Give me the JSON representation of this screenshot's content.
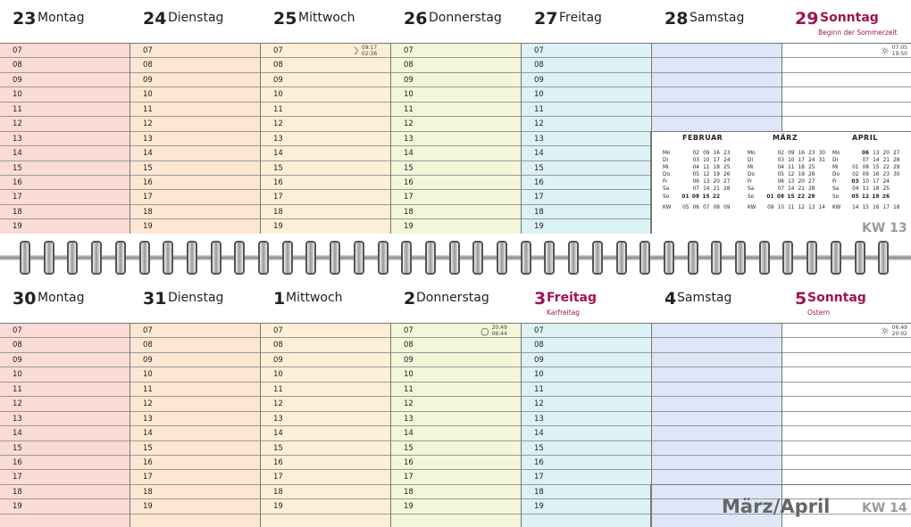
{
  "hours": [
    "07",
    "08",
    "09",
    "10",
    "11",
    "12",
    "13",
    "14",
    "15",
    "16",
    "17",
    "18",
    "19"
  ],
  "week_top": {
    "kw": "KW 13",
    "days": [
      {
        "num": "23",
        "name": "Montag"
      },
      {
        "num": "24",
        "name": "Dienstag"
      },
      {
        "num": "25",
        "name": "Mittwoch",
        "moon": {
          "rise": "09:17",
          "set": "02:36"
        }
      },
      {
        "num": "26",
        "name": "Donnerstag"
      },
      {
        "num": "27",
        "name": "Freitag"
      },
      {
        "num": "28",
        "name": "Samstag"
      },
      {
        "num": "29",
        "name": "Sonntag",
        "note": "Beginn der Sommerzeit",
        "sun": {
          "rise": "07:05",
          "set": "19:50"
        }
      }
    ]
  },
  "week_bottom": {
    "kw": "KW 14",
    "month_title": "März/April",
    "days": [
      {
        "num": "30",
        "name": "Montag"
      },
      {
        "num": "31",
        "name": "Dienstag"
      },
      {
        "num": "1",
        "name": "Mittwoch"
      },
      {
        "num": "2",
        "name": "Donnerstag",
        "moon": {
          "rise": "20:49",
          "set": "06:44"
        }
      },
      {
        "num": "3",
        "name": "Freitag",
        "note": "Karfreitag"
      },
      {
        "num": "4",
        "name": "Samstag"
      },
      {
        "num": "5",
        "name": "Sonntag",
        "note": "Ostern",
        "sun": {
          "rise": "06:49",
          "set": "20:02"
        }
      }
    ]
  },
  "mini_calendars": [
    {
      "title": "FEBRUAR",
      "rows": [
        {
          "label": "Mo",
          "cells": [
            "",
            "02",
            "09",
            "16",
            "23"
          ]
        },
        {
          "label": "Di",
          "cells": [
            "",
            "03",
            "10",
            "17",
            "24"
          ]
        },
        {
          "label": "Mi",
          "cells": [
            "",
            "04",
            "11",
            "18",
            "25"
          ]
        },
        {
          "label": "Do",
          "cells": [
            "",
            "05",
            "12",
            "19",
            "26"
          ]
        },
        {
          "label": "Fr",
          "cells": [
            "",
            "06",
            "13",
            "20",
            "27"
          ]
        },
        {
          "label": "Sa",
          "cells": [
            "",
            "07",
            "14",
            "21",
            "28"
          ]
        },
        {
          "label": "So",
          "cells": [
            "01",
            "08",
            "15",
            "22",
            ""
          ],
          "bold": true
        }
      ],
      "kw": {
        "label": "KW",
        "cells": [
          "05",
          "06",
          "07",
          "08",
          "09"
        ]
      }
    },
    {
      "title": "MÄRZ",
      "rows": [
        {
          "label": "Mo",
          "cells": [
            "",
            "02",
            "09",
            "16",
            "23",
            "30"
          ]
        },
        {
          "label": "Di",
          "cells": [
            "",
            "03",
            "10",
            "17",
            "24",
            "31"
          ]
        },
        {
          "label": "Mi",
          "cells": [
            "",
            "04",
            "11",
            "18",
            "25",
            ""
          ]
        },
        {
          "label": "Do",
          "cells": [
            "",
            "05",
            "12",
            "19",
            "26",
            ""
          ]
        },
        {
          "label": "Fr",
          "cells": [
            "",
            "06",
            "13",
            "20",
            "27",
            ""
          ]
        },
        {
          "label": "Sa",
          "cells": [
            "",
            "07",
            "14",
            "21",
            "28",
            ""
          ]
        },
        {
          "label": "So",
          "cells": [
            "01",
            "08",
            "15",
            "22",
            "29",
            ""
          ],
          "bold": true
        }
      ],
      "kw": {
        "label": "KW",
        "cells": [
          "09",
          "10",
          "11",
          "12",
          "13",
          "14"
        ]
      }
    },
    {
      "title": "APRIL",
      "rows": [
        {
          "label": "Mo",
          "cells": [
            "",
            "06",
            "13",
            "20",
            "27"
          ]
        },
        {
          "label": "Di",
          "cells": [
            "",
            "07",
            "14",
            "21",
            "28"
          ]
        },
        {
          "label": "Mi",
          "cells": [
            "01",
            "08",
            "15",
            "22",
            "29"
          ]
        },
        {
          "label": "Do",
          "cells": [
            "02",
            "09",
            "16",
            "23",
            "30"
          ]
        },
        {
          "label": "Fr",
          "cells": [
            "03",
            "10",
            "17",
            "24",
            ""
          ]
        },
        {
          "label": "Sa",
          "cells": [
            "04",
            "11",
            "18",
            "25",
            ""
          ]
        },
        {
          "label": "So",
          "cells": [
            "05",
            "12",
            "19",
            "26",
            ""
          ],
          "bold": true
        }
      ],
      "kw": {
        "label": "KW",
        "cells": [
          "14",
          "15",
          "16",
          "17",
          "18"
        ]
      }
    }
  ],
  "colors": {
    "montag": "#fadbd6",
    "dienstag": "#fde6d2",
    "mittwoch": "#fdefd6",
    "donnerstag": "#f3f6d9",
    "freitag": "#dcf2f4",
    "samstag": "#dde7f7",
    "sonntag": "#ffffff",
    "holiday_text": "#a0134f"
  },
  "icons": {
    "sun": "sun-icon",
    "moon_waxing": "moon-icon",
    "full_moon": "full-moon-icon"
  }
}
